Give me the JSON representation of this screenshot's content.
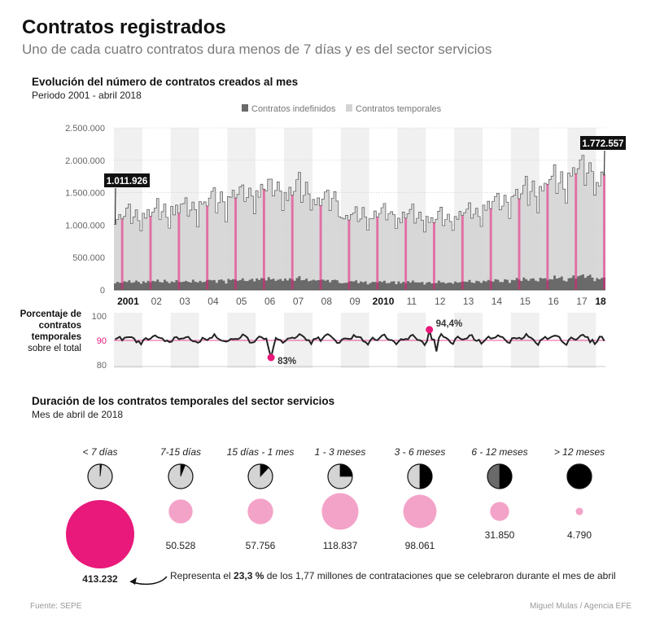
{
  "header": {
    "title": "Contratos registrados",
    "subtitle": "Uno de cada cuatro contratos dura menos de 7 días y es del sector servicios"
  },
  "colors": {
    "accent": "#e8197a",
    "temporary": "#d4d4d4",
    "indefinite": "#6a6a6a",
    "line": "#222222"
  },
  "chart_data": [
    {
      "type": "bar",
      "title": "Evolución del número de contratos creados al mes",
      "subtitle": "Periodo 2001 - abril 2018",
      "legend": [
        "Contratos indefinidos",
        "Contratos temporales"
      ],
      "legend_position": "top-right",
      "yticks": [
        "2.500.000",
        "2.000.000",
        "1.500.000",
        "1.000.000",
        "500.000",
        "0"
      ],
      "ylim": [
        0,
        2500000
      ],
      "year_labels": [
        "2001",
        "02",
        "03",
        "04",
        "05",
        "06",
        "07",
        "08",
        "09",
        "2010",
        "11",
        "12",
        "13",
        "14",
        "15",
        "16",
        "17",
        "18"
      ],
      "annual_profile": [
        1.02,
        0.97,
        1.05,
        1.0,
        1.05,
        1.12,
        1.18,
        0.93,
        1.02,
        1.12,
        1.01,
        0.82
      ],
      "annual_levels": [
        1.1,
        1.15,
        1.22,
        1.32,
        1.42,
        1.5,
        1.48,
        1.34,
        1.1,
        1.12,
        1.1,
        1.08,
        1.15,
        1.3,
        1.45,
        1.6,
        1.75,
        1.68
      ],
      "annotations": [
        {
          "label": "1.011.926",
          "month_index": 0,
          "value": 1011926
        },
        {
          "label": "1.772.557",
          "month_index": 207,
          "value": 1772557
        }
      ]
    },
    {
      "type": "line",
      "title": "Porcentaje de contratos temporales sobre el total",
      "label_lines": [
        "Porcentaje de",
        "contratos",
        "temporales",
        "sobre el total"
      ],
      "yticks": [
        "100",
        "90",
        "80"
      ],
      "ylim": [
        80,
        100
      ],
      "reference": 90,
      "annual_profile": [
        90.2,
        91.2,
        91.0,
        90.5,
        91.0,
        91.5,
        92.0,
        91.5,
        90.8,
        89.8,
        89.6,
        88.8
      ],
      "min": {
        "label": "83%",
        "value": 83,
        "month_index": 66
      },
      "max": {
        "label": "94,4%",
        "value": 94.4,
        "month_index": 133
      }
    },
    {
      "type": "pie",
      "title": "Duración de los contratos temporales del sector servicios",
      "subtitle": "Mes de abril de 2018",
      "categories": [
        "< 7 días",
        "7-15 días",
        "15 días - 1 mes",
        "1 - 3 meses",
        "3 - 6 meses",
        "6 - 12 meses",
        "> 12 meses"
      ],
      "values": [
        413232,
        50528,
        57756,
        118837,
        98061,
        31850,
        4790
      ],
      "value_labels": [
        "413.232",
        "50.528",
        "57.756",
        "118.837",
        "98.061",
        "31.850",
        "4.790"
      ],
      "pie_fractions": [
        0.02,
        0.06,
        0.12,
        0.25,
        0.5,
        0.5,
        1.0
      ],
      "note": {
        "text_before": "Representa el ",
        "text_bold": "23,3 %",
        "text_after": " de los 1,77 millones de contrataciones que se celebraron durante el mes de abril"
      }
    }
  ],
  "footer": {
    "source": "Fuente: SEPE",
    "credit": "Miguel Mulas / Agencia EFE"
  }
}
